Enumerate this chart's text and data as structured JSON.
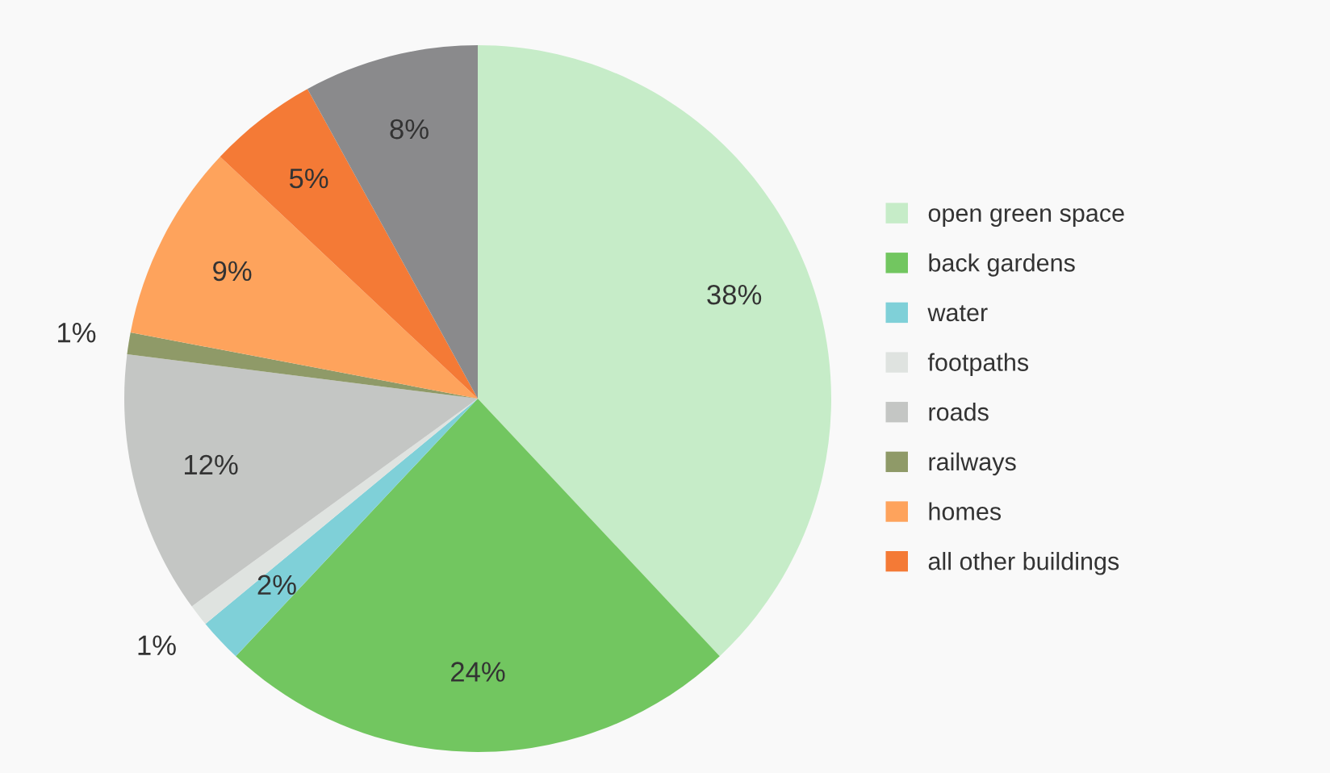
{
  "chart_data": {
    "type": "pie",
    "categories": [
      "open green space",
      "back gardens",
      "water",
      "footpaths",
      "roads",
      "railways",
      "homes",
      "all other buildings",
      null
    ],
    "values": [
      38,
      24,
      2,
      1,
      12,
      1,
      9,
      5,
      8
    ],
    "colors": [
      "#c6ecc8",
      "#72c660",
      "#7fd0d8",
      "#dfe3e0",
      "#c4c6c4",
      "#8f9a68",
      "#fea35c",
      "#f47a36",
      "#8a8a8c"
    ],
    "value_labels": [
      "38%",
      "24%",
      "2%",
      "1%",
      "12%",
      "1%",
      "9%",
      "5%",
      "8%"
    ],
    "legend": "right"
  }
}
